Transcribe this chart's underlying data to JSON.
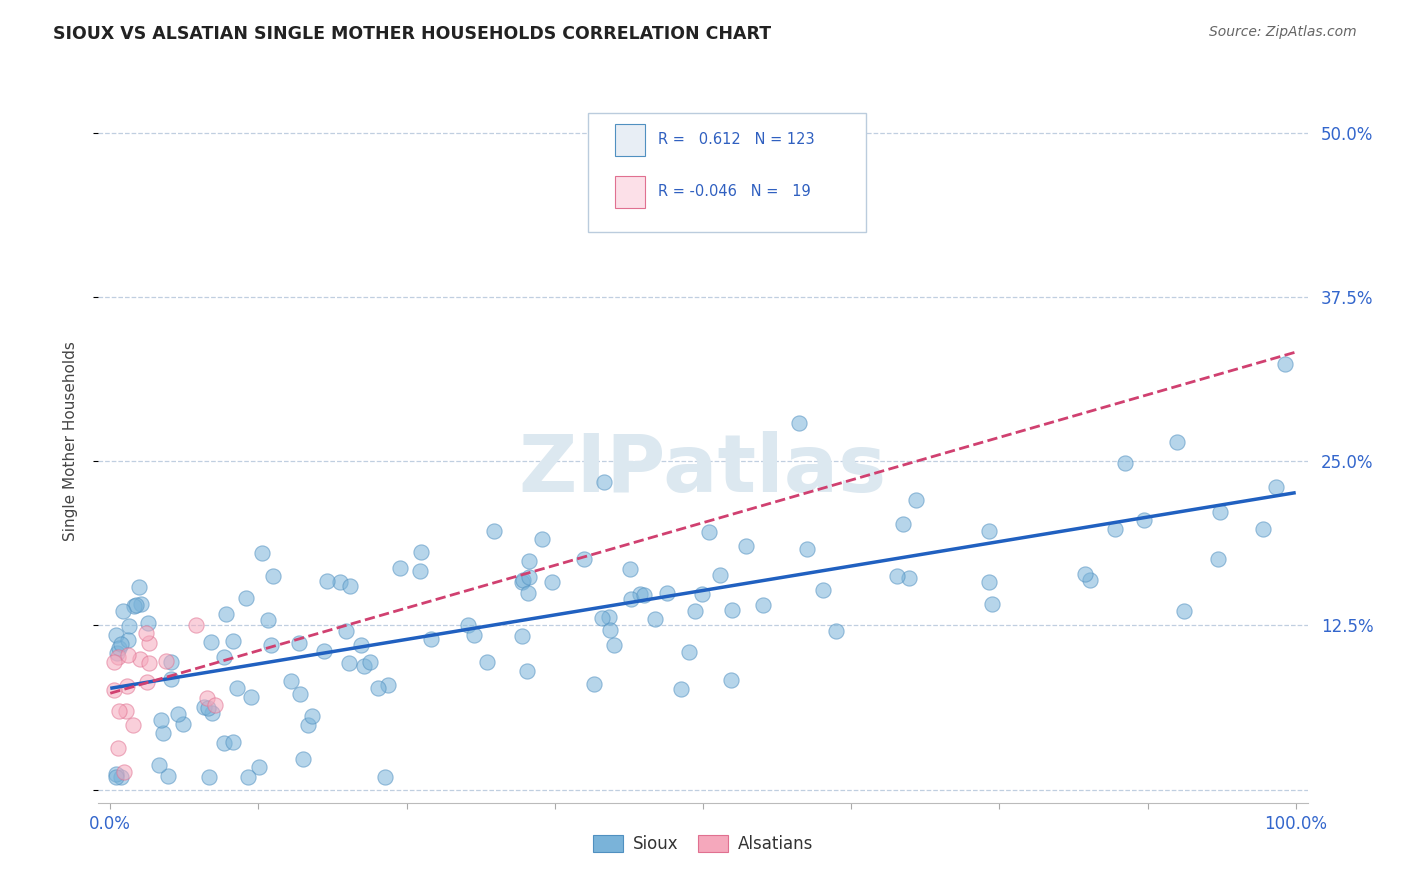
{
  "title": "SIOUX VS ALSATIAN SINGLE MOTHER HOUSEHOLDS CORRELATION CHART",
  "source": "Source: ZipAtlas.com",
  "ylabel": "Single Mother Households",
  "sioux_color": "#7ab3d9",
  "sioux_edge_color": "#5090c0",
  "alsatian_color": "#f5a8bc",
  "alsatian_edge_color": "#e07090",
  "trend_sioux_color": "#2060c0",
  "trend_alsatian_color": "#d04070",
  "background_color": "#ffffff",
  "grid_color": "#c0cfe0",
  "legend_box_color": "#e8eef5",
  "legend_text_color": "#3060c0",
  "watermark_color": "#dce8f0",
  "title_color": "#222222",
  "source_color": "#666666",
  "ylabel_color": "#444444",
  "tick_label_color": "#3366cc",
  "sioux_R": "0.612",
  "sioux_N": "123",
  "alsatian_R": "-0.046",
  "alsatian_N": "19",
  "dot_size": 120,
  "dot_alpha": 0.55,
  "trend_linewidth": 2.5,
  "sioux_seed": 7,
  "alsatian_seed": 3
}
